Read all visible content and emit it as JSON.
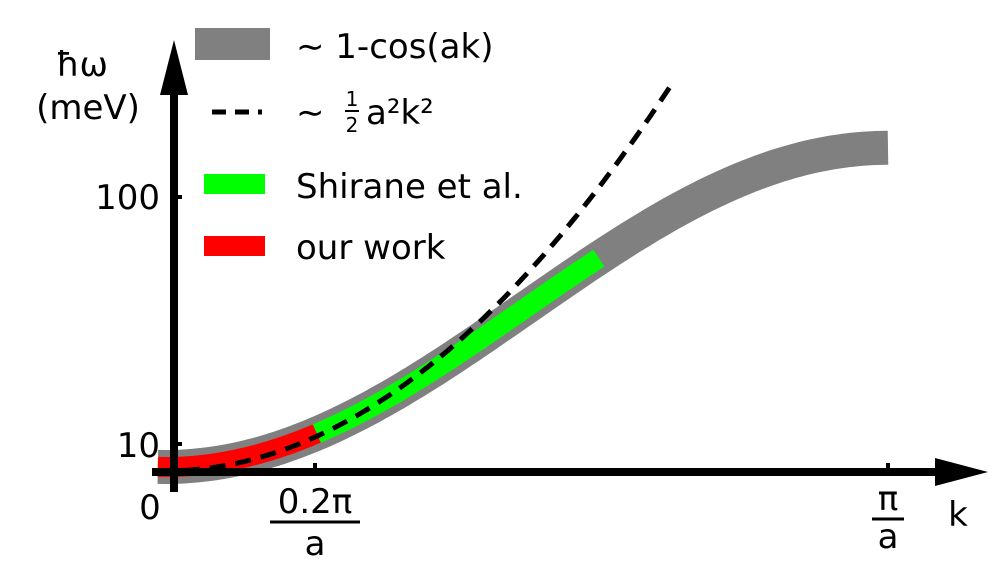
{
  "chart_data": {
    "type": "line",
    "xlabel": "k",
    "ylabel_line1": "ħω",
    "ylabel_line2": "(meV)",
    "origin_label": "0",
    "xlim_frac": [
      0,
      1.15
    ],
    "x_ticks": [
      {
        "value_frac": 0.2,
        "num": "0.2π",
        "den": "a"
      },
      {
        "value_frac": 1.0,
        "num": "π",
        "den": "a"
      }
    ],
    "y_ticks": [
      {
        "value": 10,
        "label": "10"
      },
      {
        "value": 100,
        "label": "100"
      }
    ],
    "series": [
      {
        "name": "~ 1-cos(ak)",
        "legend_text": "∼ 1-cos(ak)",
        "style": "band",
        "color": "#808080",
        "x_frac": [
          0,
          1.0
        ],
        "y_meV": [
          0,
          120
        ]
      },
      {
        "name": "~ ½a²k²",
        "legend_text": "∼ ",
        "legend_frac_num": "1",
        "legend_frac_den": "2",
        "legend_rest": "a²k²",
        "style": "dashed",
        "color": "#000000",
        "x_frac": [
          0,
          0.7
        ],
        "y_meV": [
          0,
          143
        ]
      },
      {
        "name": "Shirane et al.",
        "legend_text": "Shirane et al.",
        "style": "band",
        "color": "#00ff00",
        "x_frac": [
          0.2,
          0.6
        ],
        "y_meV": [
          12,
          75
        ]
      },
      {
        "name": "our work",
        "legend_text": "our work",
        "style": "band",
        "color": "#ff0000",
        "x_frac": [
          0,
          0.21
        ],
        "y_meV": [
          0,
          12
        ]
      }
    ]
  }
}
